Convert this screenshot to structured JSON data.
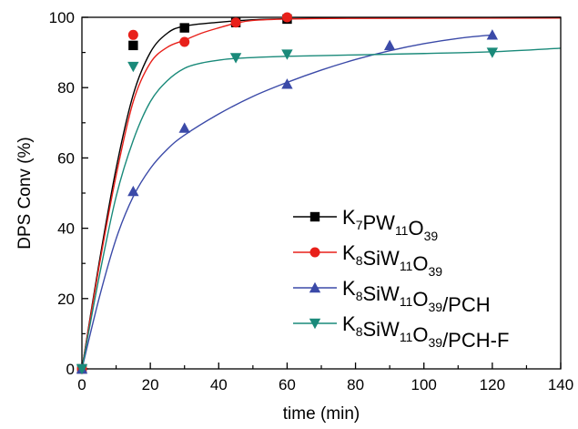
{
  "chart_data": {
    "type": "line",
    "xlabel": "time (min)",
    "ylabel": "DPS Conv (%)",
    "xlim": [
      0,
      140
    ],
    "ylim": [
      0,
      100
    ],
    "xticks": [
      "0",
      "20",
      "40",
      "60",
      "80",
      "100",
      "120",
      "140"
    ],
    "yticks": [
      "0",
      "20",
      "40",
      "60",
      "80",
      "100"
    ],
    "grid": false,
    "legend_position": "bottom-right",
    "series": [
      {
        "name": "K7PW11O39",
        "label_parts": [
          [
            "K",
            ""
          ],
          [
            "7",
            "sub"
          ],
          [
            "PW",
            ""
          ],
          [
            "11",
            "sub"
          ],
          [
            "O",
            ""
          ],
          [
            "39",
            "sub"
          ]
        ],
        "color": "#000000",
        "marker": "square",
        "points": [
          [
            0,
            0
          ],
          [
            15,
            92
          ],
          [
            30,
            97
          ],
          [
            45,
            98.5
          ],
          [
            60,
            99.5
          ]
        ],
        "fit": [
          [
            0,
            0
          ],
          [
            5,
            30
          ],
          [
            10,
            57
          ],
          [
            15,
            78
          ],
          [
            20,
            90
          ],
          [
            25,
            95.5
          ],
          [
            30,
            97.5
          ],
          [
            40,
            98.6
          ],
          [
            50,
            99.3
          ],
          [
            60,
            99.6
          ],
          [
            80,
            99.8
          ],
          [
            100,
            99.9
          ],
          [
            140,
            100
          ]
        ]
      },
      {
        "name": "K8SiW11O39",
        "label_parts": [
          [
            "K",
            ""
          ],
          [
            "8",
            "sub"
          ],
          [
            "SiW",
            ""
          ],
          [
            "11",
            "sub"
          ],
          [
            "O",
            ""
          ],
          [
            "39",
            "sub"
          ]
        ],
        "color": "#e8201a",
        "marker": "circle",
        "points": [
          [
            0,
            0
          ],
          [
            15,
            95
          ],
          [
            30,
            93
          ],
          [
            45,
            98.5
          ],
          [
            60,
            100
          ]
        ],
        "fit": [
          [
            0,
            0
          ],
          [
            5,
            29
          ],
          [
            10,
            55
          ],
          [
            15,
            76
          ],
          [
            20,
            87
          ],
          [
            25,
            91.5
          ],
          [
            30,
            93.5
          ],
          [
            35,
            95.5
          ],
          [
            40,
            97
          ],
          [
            45,
            98.3
          ],
          [
            50,
            99.1
          ],
          [
            60,
            99.5
          ],
          [
            80,
            99.7
          ],
          [
            140,
            99.8
          ]
        ]
      },
      {
        "name": "K8SiW11O39/PCH",
        "label_parts": [
          [
            "K",
            ""
          ],
          [
            "8",
            "sub"
          ],
          [
            "SiW",
            ""
          ],
          [
            "11",
            "sub"
          ],
          [
            "O",
            ""
          ],
          [
            "39",
            "sub"
          ],
          [
            "/PCH",
            ""
          ]
        ],
        "color": "#3b4aa8",
        "marker": "triangle-up",
        "points": [
          [
            0,
            0
          ],
          [
            15,
            50.5
          ],
          [
            30,
            68.5
          ],
          [
            60,
            81
          ],
          [
            90,
            92
          ],
          [
            120,
            95
          ]
        ],
        "fit": [
          [
            0,
            0
          ],
          [
            5,
            20
          ],
          [
            10,
            37
          ],
          [
            15,
            49
          ],
          [
            20,
            57
          ],
          [
            25,
            62.5
          ],
          [
            30,
            66.5
          ],
          [
            40,
            72.5
          ],
          [
            50,
            77.5
          ],
          [
            60,
            81.5
          ],
          [
            70,
            85
          ],
          [
            80,
            88
          ],
          [
            90,
            90.5
          ],
          [
            100,
            92.5
          ],
          [
            110,
            94
          ],
          [
            120,
            95
          ]
        ]
      },
      {
        "name": "K8SiW11O39/PCH-F",
        "label_parts": [
          [
            "K",
            ""
          ],
          [
            "8",
            "sub"
          ],
          [
            "SiW",
            ""
          ],
          [
            "11",
            "sub"
          ],
          [
            "O",
            ""
          ],
          [
            "39",
            "sub"
          ],
          [
            "/PCH-F",
            ""
          ]
        ],
        "color": "#1a8a7a",
        "marker": "triangle-down",
        "points": [
          [
            0,
            0
          ],
          [
            15,
            86
          ],
          [
            45,
            88.5
          ],
          [
            60,
            89.5
          ],
          [
            120,
            90
          ]
        ],
        "fit": [
          [
            0,
            0
          ],
          [
            5,
            26
          ],
          [
            10,
            49
          ],
          [
            15,
            65
          ],
          [
            20,
            76
          ],
          [
            25,
            82
          ],
          [
            30,
            85.5
          ],
          [
            35,
            87
          ],
          [
            40,
            87.8
          ],
          [
            45,
            88.3
          ],
          [
            60,
            88.9
          ],
          [
            80,
            89.3
          ],
          [
            100,
            89.7
          ],
          [
            120,
            90.2
          ],
          [
            140,
            91.2
          ]
        ]
      }
    ]
  }
}
